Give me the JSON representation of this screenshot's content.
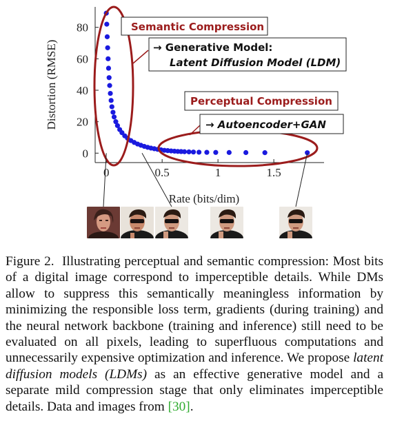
{
  "chart_data": {
    "type": "scatter",
    "xlabel": "Rate (bits/dim)",
    "ylabel": "Distortion (RMSE)",
    "xlim": [
      -0.1,
      1.95
    ],
    "ylim": [
      -6,
      93
    ],
    "xticks": [
      0,
      0.5,
      1,
      1.5
    ],
    "xtick_labels": [
      "0",
      "0.5",
      "1",
      "1.5"
    ],
    "yticks": [
      0,
      20,
      40,
      60,
      80
    ],
    "ytick_labels": [
      "0",
      "20",
      "40",
      "60",
      "80"
    ],
    "grid": false,
    "marker_color": "#1a1adf",
    "points": [
      {
        "x": 0.0,
        "y": 89
      },
      {
        "x": 0.004,
        "y": 82
      },
      {
        "x": 0.008,
        "y": 74
      },
      {
        "x": 0.012,
        "y": 67
      },
      {
        "x": 0.016,
        "y": 60
      },
      {
        "x": 0.02,
        "y": 54
      },
      {
        "x": 0.025,
        "y": 48
      },
      {
        "x": 0.03,
        "y": 43
      },
      {
        "x": 0.036,
        "y": 38
      },
      {
        "x": 0.043,
        "y": 33.5
      },
      {
        "x": 0.05,
        "y": 29.5
      },
      {
        "x": 0.06,
        "y": 26
      },
      {
        "x": 0.07,
        "y": 23
      },
      {
        "x": 0.085,
        "y": 20
      },
      {
        "x": 0.1,
        "y": 17.5
      },
      {
        "x": 0.12,
        "y": 15
      },
      {
        "x": 0.14,
        "y": 13
      },
      {
        "x": 0.165,
        "y": 11
      },
      {
        "x": 0.19,
        "y": 9.5
      },
      {
        "x": 0.22,
        "y": 8
      },
      {
        "x": 0.25,
        "y": 6.8
      },
      {
        "x": 0.28,
        "y": 5.8
      },
      {
        "x": 0.31,
        "y": 5
      },
      {
        "x": 0.34,
        "y": 4.3
      },
      {
        "x": 0.37,
        "y": 3.7
      },
      {
        "x": 0.4,
        "y": 3.2
      },
      {
        "x": 0.43,
        "y": 2.8
      },
      {
        "x": 0.46,
        "y": 2.4
      },
      {
        "x": 0.49,
        "y": 2.1
      },
      {
        "x": 0.52,
        "y": 1.8
      },
      {
        "x": 0.55,
        "y": 1.6
      },
      {
        "x": 0.58,
        "y": 1.4
      },
      {
        "x": 0.61,
        "y": 1.25
      },
      {
        "x": 0.64,
        "y": 1.1
      },
      {
        "x": 0.67,
        "y": 1.0
      },
      {
        "x": 0.7,
        "y": 0.9
      },
      {
        "x": 0.74,
        "y": 0.8
      },
      {
        "x": 0.78,
        "y": 0.7
      },
      {
        "x": 0.83,
        "y": 0.6
      },
      {
        "x": 0.9,
        "y": 0.5
      },
      {
        "x": 0.98,
        "y": 0.45
      },
      {
        "x": 1.1,
        "y": 0.4
      },
      {
        "x": 1.25,
        "y": 0.35
      },
      {
        "x": 1.42,
        "y": 0.3
      },
      {
        "x": 1.8,
        "y": 0.25
      }
    ],
    "annotations": {
      "semantic": {
        "label": "Semantic Compression",
        "color": "#9b1c1c"
      },
      "semantic_sub": {
        "line1": "→ Generative Model:",
        "line2": "Latent Diffusion Model (LDM)"
      },
      "perceptual": {
        "label": "Perceptual Compression",
        "color": "#9b1c1c"
      },
      "perceptual_sub": {
        "line1": "→ Autoencoder+GAN"
      }
    },
    "thumbnail_rates": [
      0.0,
      0.04,
      0.32,
      0.98,
      1.8
    ]
  },
  "caption": {
    "figure_label": "Figure 2.",
    "text_part1": "Illustrating perceptual and semantic compression: Most bits of a digital image correspond to imperceptible details. While DMs allow to suppress this semantically meaningless information by minimizing the responsible loss term, gradients (during training) and the neural network backbone (training and inference) still need to be evaluated on all pixels, leading to superfluous computations and unnecessarily expensive optimization and inference. We propose ",
    "emphasis": "latent diffusion models (LDMs)",
    "text_part2": " as an effective generative model and a separate mild compression stage that only eliminates imperceptible details. Data and images from ",
    "ref": "[30]",
    "text_end": "."
  },
  "colors": {
    "accent": "#9b1c1c",
    "points": "#1a1adf",
    "ref": "#2eab2e"
  }
}
